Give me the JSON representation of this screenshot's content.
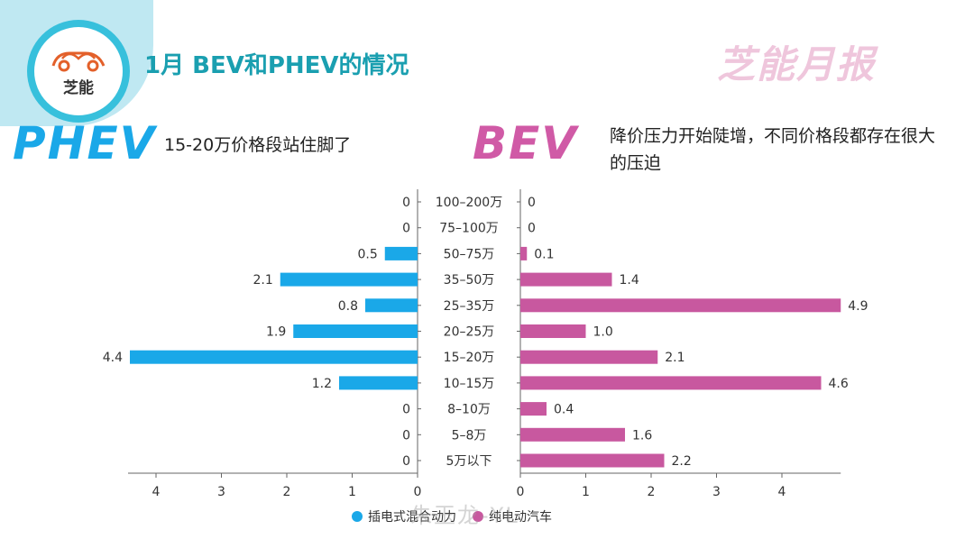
{
  "header": {
    "title": "1月 BEV和PHEV的情况",
    "brand": "芝能月报",
    "logo_text": "芝能"
  },
  "phev": {
    "label": "PHEV",
    "subtitle": "15-20万价格段站住脚了"
  },
  "bev": {
    "label": "BEV",
    "subtitle": "降价压力开始陡增，不同价格段都存在很大的压迫"
  },
  "colors": {
    "phev": "#1aa8e8",
    "bev": "#c8589f",
    "teal": "#1a9fb0"
  },
  "chart_data": {
    "type": "bar",
    "orientation": "horizontal-butterfly",
    "categories": [
      "100–200万",
      "75–100万",
      "50–75万",
      "35–50万",
      "25–35万",
      "20–25万",
      "15–20万",
      "10–15万",
      "8–10万",
      "5–8万",
      "5万以下"
    ],
    "series": [
      {
        "name": "插电式混合动力",
        "values": [
          0,
          0,
          0.5,
          2.1,
          0.8,
          1.9,
          4.4,
          1.2,
          0,
          0,
          0
        ],
        "labels": [
          "0",
          "0",
          "0.5",
          "2.1",
          "0.8",
          "1.9",
          "4.4",
          "1.2",
          "0",
          "0",
          "0"
        ]
      },
      {
        "name": "纯电动汽车",
        "values": [
          0,
          0,
          0.1,
          1.4,
          4.9,
          1.0,
          2.1,
          4.6,
          0.4,
          1.6,
          2.2
        ],
        "labels": [
          "0",
          "0",
          "0.1",
          "1.4",
          "4.9",
          "1.0",
          "2.1",
          "4.6",
          "0.4",
          "1.6",
          "2.2"
        ]
      }
    ],
    "left_ticks": [
      "4",
      "3",
      "2",
      "1",
      "0"
    ],
    "right_ticks": [
      "0",
      "1",
      "2",
      "3",
      "4"
    ],
    "xlim": [
      0,
      4.9
    ]
  },
  "legend": {
    "phev": "插电式混合动力",
    "bev": "纯电动汽车"
  },
  "watermark": "朱玉龙-YL"
}
